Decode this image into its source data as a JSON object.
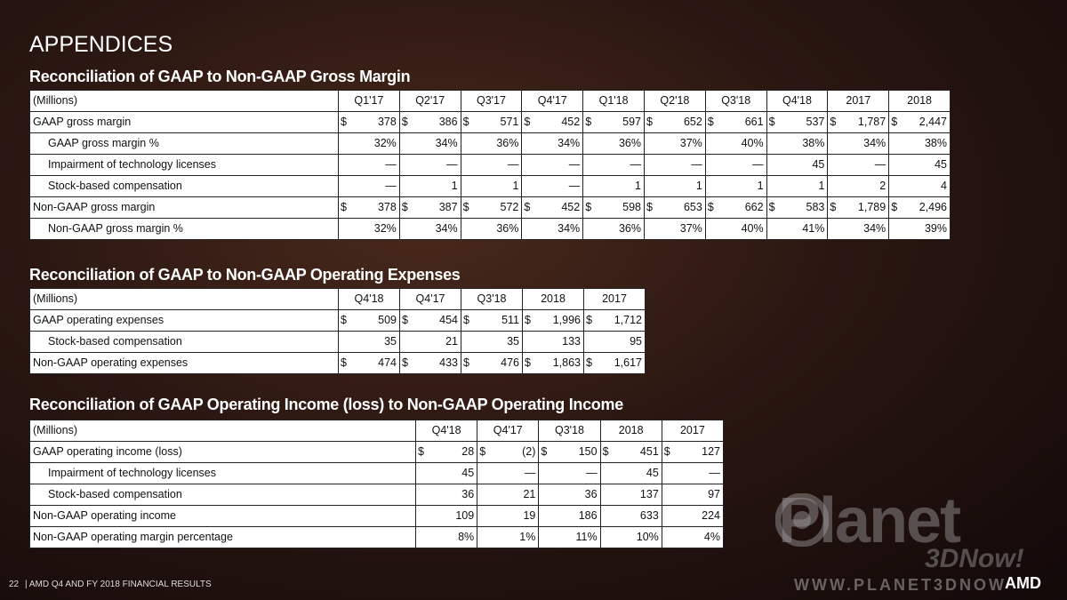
{
  "title": "APPENDICES",
  "tables": [
    {
      "title": "Reconciliation of GAAP to Non-GAAP Gross Margin",
      "header": [
        "(Millions)",
        "Q1'17",
        "Q2'17",
        "Q3'17",
        "Q4'17",
        "Q1'18",
        "Q2'18",
        "Q3'18",
        "Q4'18",
        "2017",
        "2018"
      ],
      "rows": [
        {
          "label": "GAAP gross margin",
          "currency": "$",
          "cells": [
            "378",
            "386",
            "571",
            "452",
            "597",
            "652",
            "661",
            "537",
            "1,787",
            "2,447"
          ]
        },
        {
          "label": "GAAP gross margin %",
          "indent": true,
          "cells": [
            "32%",
            "34%",
            "36%",
            "34%",
            "36%",
            "37%",
            "40%",
            "38%",
            "34%",
            "38%"
          ]
        },
        {
          "label": "Impairment  of technology licenses",
          "indent": true,
          "cells": [
            "—",
            "—",
            "—",
            "—",
            "—",
            "—",
            "—",
            "45",
            "—",
            "45"
          ]
        },
        {
          "label": "Stock-based  compensation",
          "indent": true,
          "cells": [
            "—",
            "1",
            "1",
            "—",
            "1",
            "1",
            "1",
            "1",
            "2",
            "4"
          ]
        },
        {
          "label": "Non-GAAP  gross margin",
          "currency": "$",
          "cells": [
            "378",
            "387",
            "572",
            "452",
            "598",
            "653",
            "662",
            "583",
            "1,789",
            "2,496"
          ]
        },
        {
          "label": "Non-GAAP  gross margin %",
          "indent": true,
          "cells": [
            "32%",
            "34%",
            "36%",
            "34%",
            "36%",
            "37%",
            "40%",
            "41%",
            "34%",
            "39%"
          ]
        }
      ]
    },
    {
      "title": "Reconciliation of GAAP to Non-GAAP Operating Expenses",
      "header": [
        "(Millions)",
        "Q4'18",
        "Q4'17",
        "Q3'18",
        "2018",
        "2017"
      ],
      "rows": [
        {
          "label": "GAAP operating  expenses",
          "currency": "$",
          "cells": [
            "509",
            "454",
            "511",
            "1,996",
            "1,712"
          ]
        },
        {
          "label": "Stock-based  compensation",
          "indent": true,
          "cells": [
            "35",
            "21",
            "35",
            "133",
            "95"
          ]
        },
        {
          "label": "Non-GAAP  operating  expenses",
          "currency": "$",
          "cells": [
            "474",
            "433",
            "476",
            "1,863",
            "1,617"
          ]
        }
      ]
    },
    {
      "title": "Reconciliation of GAAP Operating Income (loss) to Non-GAAP Operating Income",
      "header": [
        "(Millions)",
        "Q4'18",
        "Q4'17",
        "Q3'18",
        "2018",
        "2017"
      ],
      "rows": [
        {
          "label": "GAAP operating  income (loss)",
          "currency": "$",
          "cells": [
            "28",
            "(2)",
            "150",
            "451",
            "127"
          ]
        },
        {
          "label": "Impairment  of technology licenses",
          "indent": true,
          "cells": [
            "45",
            "—",
            "—",
            "45",
            "—"
          ]
        },
        {
          "label": "Stock-based  compensation",
          "indent": true,
          "cells": [
            "36",
            "21",
            "36",
            "137",
            "97"
          ]
        },
        {
          "label": "Non-GAAP  operating  income",
          "cells": [
            "109",
            "19",
            "186",
            "633",
            "224"
          ]
        },
        {
          "label": "Non-GAAP  operating  margin percentage",
          "cells": [
            "8%",
            "1%",
            "11%",
            "10%",
            "4%"
          ]
        }
      ]
    }
  ],
  "watermark": {
    "name": "Planet",
    "sub": "3DNow!",
    "url": "WWW.PLANET3DNOW"
  },
  "footer": {
    "page": "22",
    "text": "|  AMD Q4 AND FY 2018 FINANCIAL RESULTS",
    "logo": "AMD"
  }
}
